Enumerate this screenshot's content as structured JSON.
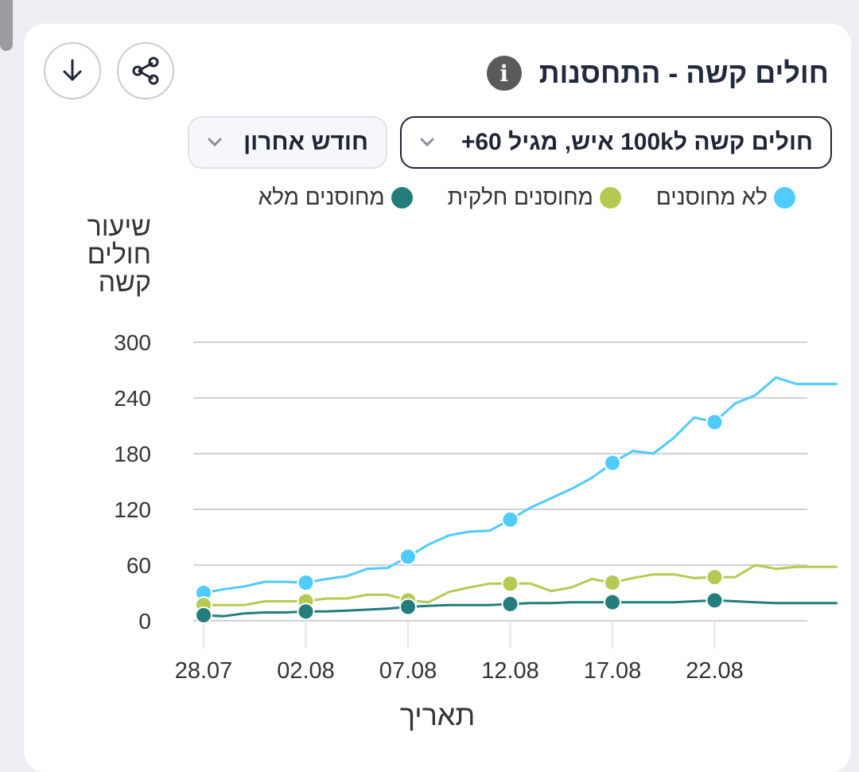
{
  "card": {
    "title": "חולים קשה - התחסנות",
    "info_icon": "info-icon",
    "download_icon": "download-arrow-icon",
    "share_icon": "share-icon"
  },
  "controls": {
    "metric_select": "חולים קשה ל100k איש, מגיל 60+",
    "period_select": "חודש אחרון"
  },
  "colors": {
    "unvaccinated": "#50cbfd",
    "partial": "#b6ca51",
    "full": "#237d7d",
    "grid": "#cfd1d6",
    "axis_text": "#333333"
  },
  "chart_data": {
    "type": "line",
    "title": "",
    "xlabel": "תאריך",
    "ylabel_lines": [
      "שיעור",
      "חולים",
      "קשה"
    ],
    "ylim": [
      0,
      300
    ],
    "y_ticks": [
      0,
      60,
      120,
      180,
      240,
      300
    ],
    "x_ticks": [
      "28.07",
      "02.08",
      "07.08",
      "12.08",
      "17.08",
      "22.08"
    ],
    "x_tick_index": [
      0,
      5,
      10,
      15,
      20,
      25
    ],
    "x": [
      "28.07",
      "29.07",
      "30.07",
      "31.07",
      "01.08",
      "02.08",
      "03.08",
      "04.08",
      "05.08",
      "06.08",
      "07.08",
      "08.08",
      "09.08",
      "10.08",
      "11.08",
      "12.08",
      "13.08",
      "14.08",
      "15.08",
      "16.08",
      "17.08",
      "18.08",
      "19.08",
      "20.08",
      "21.08",
      "22.08",
      "23.08",
      "24.08",
      "25.08",
      "26.08",
      "27.08",
      "28.08"
    ],
    "marker_every": 5,
    "grid": true,
    "legend_position": "top",
    "series": [
      {
        "name": "לא מחוסנים",
        "color_key": "unvaccinated",
        "values": [
          30,
          34,
          37,
          42,
          42,
          41,
          45,
          48,
          56,
          57,
          69,
          82,
          92,
          96,
          97,
          109,
          122,
          132,
          142,
          154,
          170,
          183,
          180,
          197,
          219,
          214,
          234,
          243,
          262,
          255,
          255,
          255
        ]
      },
      {
        "name": "מחוסנים חלקית",
        "color_key": "partial",
        "values": [
          17,
          17,
          17,
          21,
          21,
          21,
          24,
          24,
          28,
          28,
          22,
          20,
          31,
          36,
          40,
          40,
          40,
          32,
          36,
          45,
          41,
          46,
          50,
          50,
          46,
          47,
          47,
          60,
          56,
          58,
          58,
          58
        ]
      },
      {
        "name": "מחוסנים מלא",
        "color_key": "full",
        "values": [
          6,
          5,
          8,
          9,
          9,
          10,
          10,
          11,
          12,
          13,
          15,
          16,
          17,
          17,
          17,
          18,
          19,
          19,
          20,
          20,
          20,
          20,
          20,
          20,
          21,
          22,
          21,
          20,
          19,
          19,
          19,
          19
        ]
      }
    ]
  }
}
